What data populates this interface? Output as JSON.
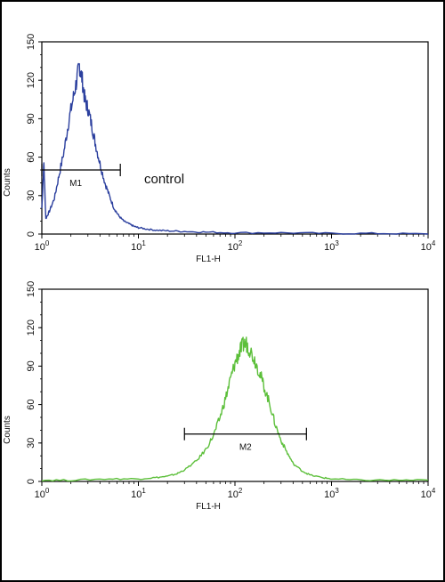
{
  "chart_data": [
    {
      "type": "line",
      "xlabel": "FL1-H",
      "ylabel": "Counts",
      "xscale": "log",
      "xlim": [
        1,
        10000
      ],
      "ylim": [
        0,
        150
      ],
      "xticks": [
        "10",
        "10",
        "10",
        "10",
        "10"
      ],
      "xtick_exponents": [
        "0",
        "1",
        "2",
        "3",
        "4"
      ],
      "yticks": [
        "0",
        "30",
        "60",
        "90",
        "120",
        "150"
      ],
      "series": [
        {
          "color": "#2b3f9e",
          "x": [
            1.0,
            1.05,
            1.1,
            1.2,
            1.35,
            1.5,
            1.7,
            1.9,
            2.1,
            2.3,
            2.45,
            2.6,
            2.8,
            3.0,
            3.3,
            3.6,
            4.0,
            4.5,
            5.0,
            5.6,
            6.3,
            7.1,
            8.0,
            9.0,
            10.0,
            12.0,
            15.0,
            20.0,
            30.0,
            50.0,
            100.0,
            300.0,
            1000.0,
            3000.0,
            10000.0
          ],
          "y": [
            20,
            55,
            12,
            18,
            28,
            45,
            65,
            88,
            105,
            120,
            132,
            122,
            104,
            98,
            84,
            70,
            55,
            40,
            30,
            20,
            14,
            10,
            8,
            6,
            5,
            4,
            3,
            2.5,
            2,
            1.5,
            1,
            1,
            0.5,
            0.5,
            0
          ]
        }
      ],
      "markers": [
        {
          "label": "M1",
          "x_start": 1.0,
          "x_end": 6.5,
          "y": 50
        }
      ],
      "annotations": [
        "control"
      ]
    },
    {
      "type": "line",
      "xlabel": "FL1-H",
      "ylabel": "Counts",
      "xscale": "log",
      "xlim": [
        1,
        10000
      ],
      "ylim": [
        0,
        150
      ],
      "xticks": [
        "10",
        "10",
        "10",
        "10",
        "10"
      ],
      "xtick_exponents": [
        "0",
        "1",
        "2",
        "3",
        "4"
      ],
      "yticks": [
        "0",
        "30",
        "60",
        "90",
        "120",
        "150"
      ],
      "series": [
        {
          "color": "#5cbf3a",
          "x": [
            1.0,
            2.0,
            5.0,
            10.0,
            15.0,
            20.0,
            25.0,
            30.0,
            40.0,
            50.0,
            60.0,
            70.0,
            80.0,
            90.0,
            100.0,
            110.0,
            120.0,
            130.0,
            140.0,
            160.0,
            180.0,
            200.0,
            230.0,
            260.0,
            300.0,
            350.0,
            400.0,
            500.0,
            600.0,
            800.0,
            1000.0,
            2000.0,
            5000.0,
            10000.0
          ],
          "y": [
            1,
            1,
            2,
            2,
            3,
            4,
            6,
            9,
            16,
            25,
            36,
            50,
            65,
            80,
            92,
            100,
            106,
            108,
            104,
            95,
            85,
            74,
            60,
            45,
            32,
            22,
            14,
            8,
            5,
            3,
            2,
            1,
            1,
            1
          ]
        }
      ],
      "markers": [
        {
          "label": "M2",
          "x_start": 30.0,
          "x_end": 550.0,
          "y": 37
        }
      ],
      "annotations": []
    }
  ]
}
